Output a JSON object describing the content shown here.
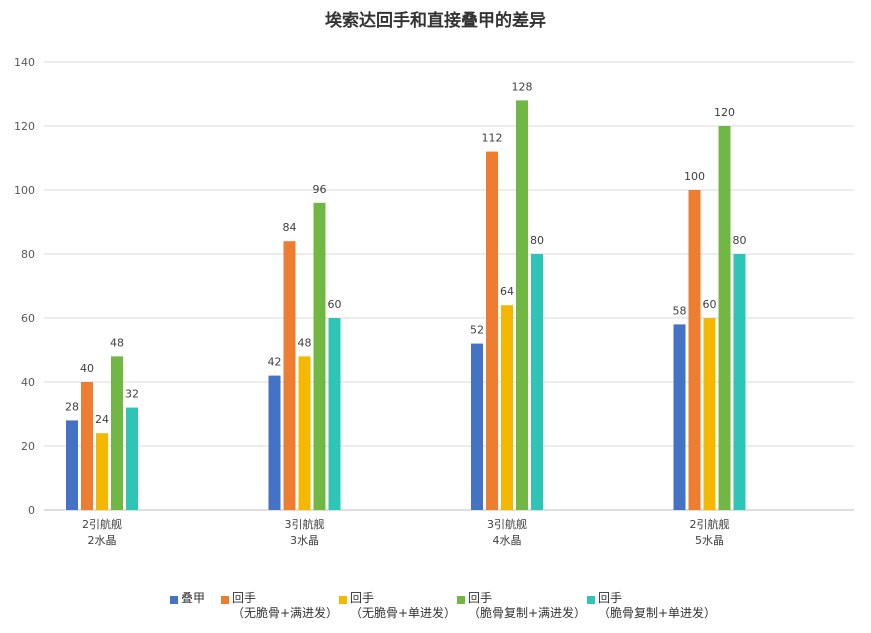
{
  "chart_data": {
    "type": "bar",
    "title": "埃索达回手和直接叠甲的差异",
    "categories": [
      [
        "2引航舰",
        "2水晶"
      ],
      [
        "3引航舰",
        "3水晶"
      ],
      [
        "3引航舰",
        "4水晶"
      ],
      [
        "2引航舰",
        "5水晶"
      ]
    ],
    "series": [
      {
        "name": [
          "叠甲"
        ],
        "color": "#4472c4",
        "values": [
          28,
          42,
          52,
          58
        ]
      },
      {
        "name": [
          "回手",
          "（无脆骨+满进发）"
        ],
        "color": "#ed7d31",
        "values": [
          40,
          84,
          112,
          100
        ]
      },
      {
        "name": [
          "回手",
          "（无脆骨+单进发）"
        ],
        "color": "#f5b800",
        "values": [
          24,
          48,
          64,
          60
        ]
      },
      {
        "name": [
          "回手",
          "（脆骨复制+满进发）"
        ],
        "color": "#70b843",
        "values": [
          48,
          96,
          128,
          120
        ]
      },
      {
        "name": [
          "回手",
          "（脆骨复制+单进发）"
        ],
        "color": "#2ec4b6",
        "values": [
          32,
          60,
          80,
          80
        ]
      }
    ],
    "xlabel": "",
    "ylabel": "",
    "ylim": [
      0,
      140
    ],
    "yticks": [
      0,
      20,
      40,
      60,
      80,
      100,
      120,
      140
    ],
    "grid": true,
    "legend_position": "bottom",
    "data_labels": true
  }
}
